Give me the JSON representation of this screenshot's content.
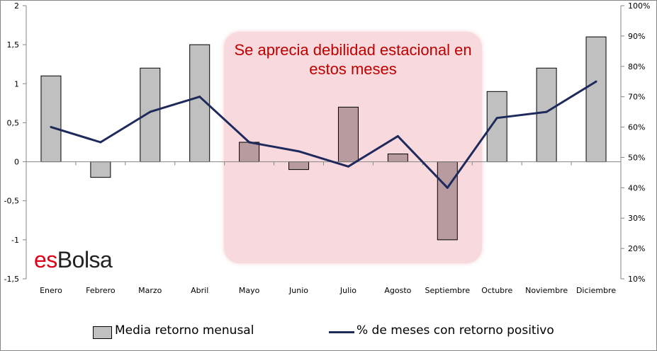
{
  "chart_data": {
    "type": "bar",
    "categories": [
      "Enero",
      "Febrero",
      "Marzo",
      "Abril",
      "Mayo",
      "Junio",
      "Julio",
      "Agosto",
      "Septiembre",
      "Octubre",
      "Noviembre",
      "Diciembre"
    ],
    "series": [
      {
        "name": "Media retorno menusal",
        "type": "bar",
        "axis": "left",
        "values": [
          1.1,
          -0.2,
          1.2,
          1.5,
          0.25,
          -0.1,
          0.7,
          0.1,
          -1.0,
          0.9,
          1.2,
          1.6
        ]
      },
      {
        "name": "% de meses con retorno positivo",
        "type": "line",
        "axis": "right",
        "values": [
          60,
          55,
          65,
          70,
          55,
          52,
          47,
          57,
          40,
          63,
          65,
          75
        ]
      }
    ],
    "y_left": {
      "lim": [
        -1.5,
        2
      ],
      "ticks": [
        "-1,5",
        "-1",
        "-0,5",
        "0",
        "0,5",
        "1",
        "1,5",
        "2"
      ],
      "tick_values": [
        -1.5,
        -1,
        -0.5,
        0,
        0.5,
        1,
        1.5,
        2
      ]
    },
    "y_right": {
      "lim": [
        10,
        100
      ],
      "ticks": [
        "10%",
        "20%",
        "30%",
        "40%",
        "50%",
        "60%",
        "70%",
        "80%",
        "90%",
        "100%"
      ],
      "tick_values": [
        10,
        20,
        30,
        40,
        50,
        60,
        70,
        80,
        90,
        100
      ]
    },
    "highlight_categories": [
      "Mayo",
      "Junio",
      "Julio",
      "Agosto",
      "Septiembre"
    ],
    "annotation": "Se aprecia debilidad estacional en estos meses",
    "grid": false,
    "legend_position": "bottom",
    "colors": {
      "bar": "#c0c0c0",
      "bar_highlight": "#b79b9f",
      "line": "#1f2a5c",
      "highlight_box": "#f2c4ca",
      "annotation_text": "#c00000"
    }
  },
  "brand": {
    "part1": "es",
    "part2": "Bolsa"
  },
  "legend": {
    "bar_label": "Media retorno menusal",
    "line_label": "% de meses con retorno positivo"
  }
}
